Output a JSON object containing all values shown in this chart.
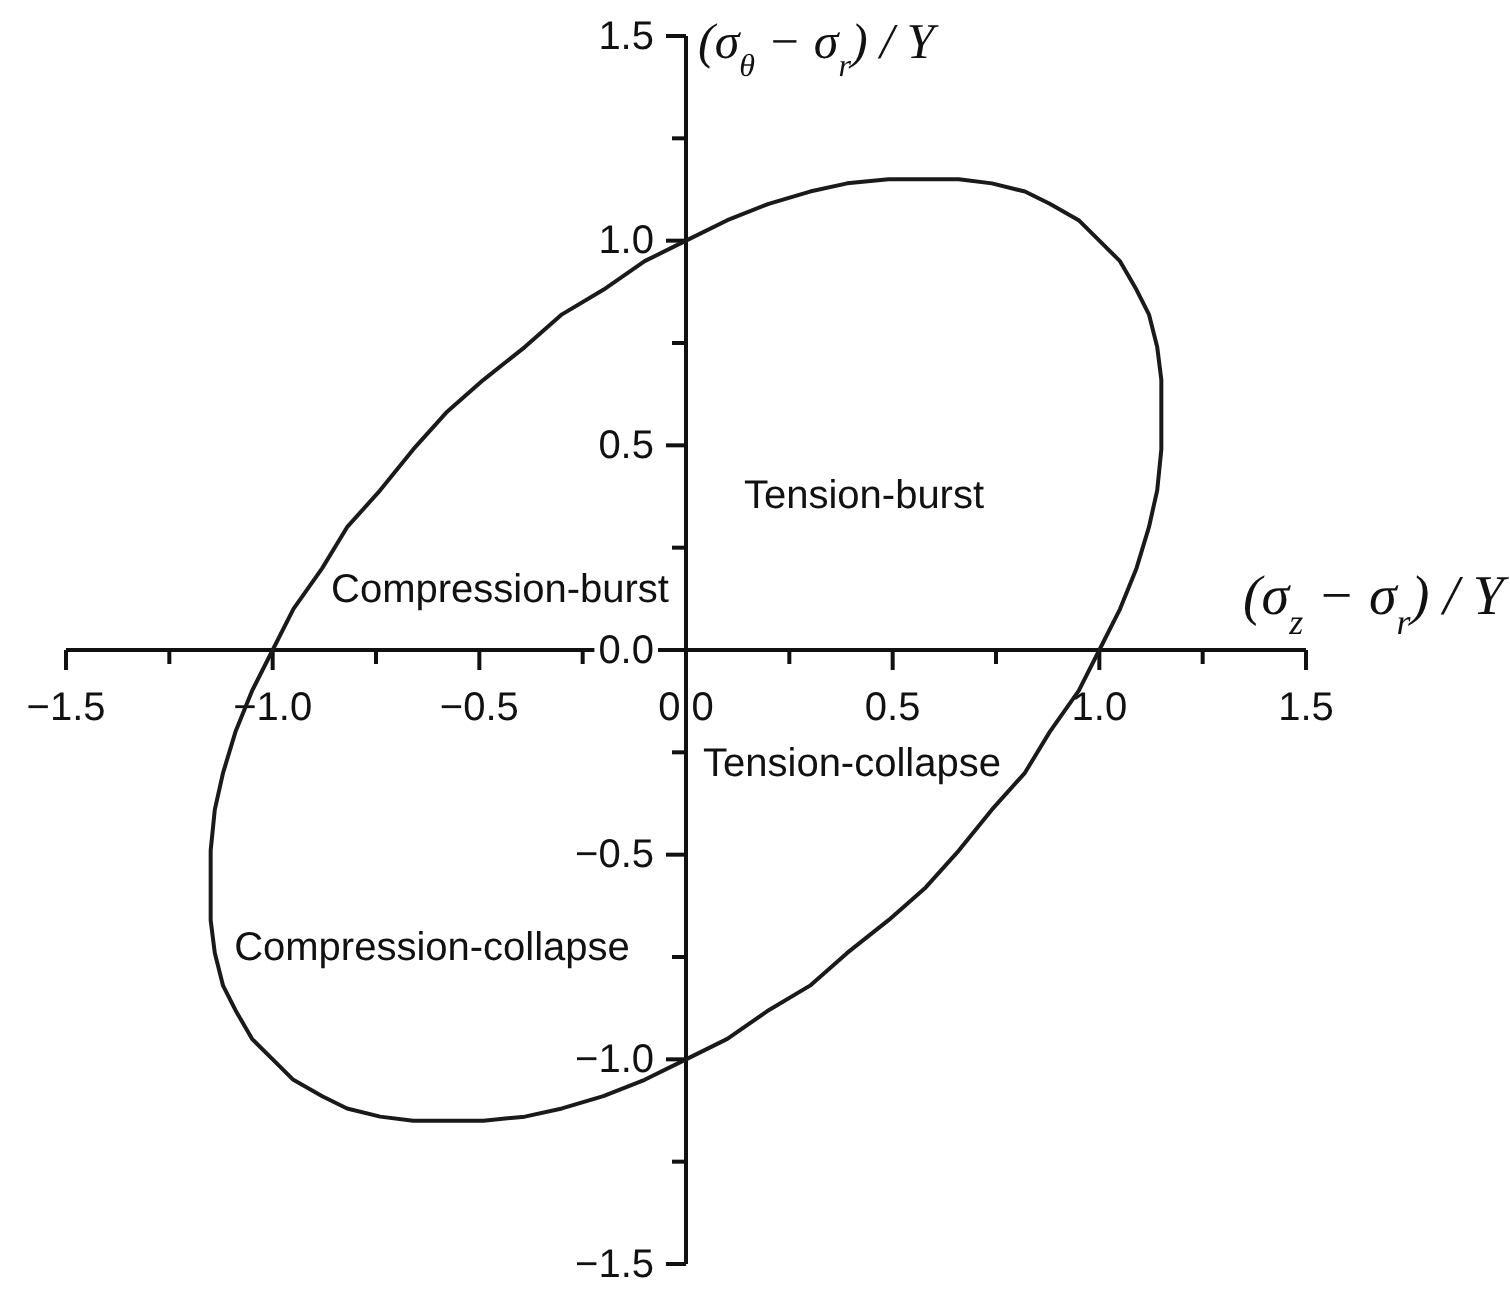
{
  "chart_data": {
    "type": "line",
    "xlabel": "(σ$_{z}$ − σ$_{r}$) / Y",
    "ylabel": "(σ$_{θ}$ − σ$_{r}$) / Y",
    "xlim": [
      -1.5,
      1.5
    ],
    "ylim": [
      -1.5,
      1.5
    ],
    "xticks": [
      {
        "value": -1.5,
        "label": "−1.5"
      },
      {
        "value": -1.25,
        "label": null
      },
      {
        "value": -1,
        "label": "−1.0"
      },
      {
        "value": -0.75,
        "label": null
      },
      {
        "value": -0.5,
        "label": "−0.5"
      },
      {
        "value": -0.25,
        "label": null
      },
      {
        "value": 0,
        "label": "0.0"
      },
      {
        "value": 0.25,
        "label": null
      },
      0.5,
      {
        "value": 0.75,
        "label": null
      },
      {
        "value": 1,
        "label": "1.0"
      },
      {
        "value": 1.25,
        "label": null
      },
      1.5
    ],
    "yticks": [
      {
        "value": -1.5,
        "label": "−1.5"
      },
      {
        "value": -1.25,
        "label": null
      },
      {
        "value": -1,
        "label": "−1.0"
      },
      {
        "value": -0.75,
        "label": null
      },
      {
        "value": -0.5,
        "label": "−0.5"
      },
      {
        "value": -0.25,
        "label": null
      },
      {
        "value": 0,
        "label": "0.0"
      },
      {
        "value": 0.25,
        "label": null
      },
      0.5,
      {
        "value": 0.75,
        "label": null
      },
      {
        "value": 1,
        "label": "1.0"
      },
      {
        "value": 1.25,
        "label": null
      },
      1.5
    ],
    "series": [
      {
        "color": "#1a1a1a",
        "x": [
          1,
          0.95,
          0.88,
          0.82,
          0.74,
          0.66,
          0.58,
          0.49,
          0.39,
          0.3,
          0.2,
          0.1,
          0,
          -0.1,
          -0.2,
          -0.3,
          -0.39,
          -0.49,
          -0.58,
          -0.66,
          -0.74,
          -0.82,
          -0.88,
          -0.95,
          -1,
          -1.05,
          -1.09,
          -1.12,
          -1.14,
          -1.15,
          -1.15,
          -1.15,
          -1.14,
          -1.12,
          -1.09,
          -1.05,
          -1,
          -0.95,
          -0.88,
          -0.82,
          -0.74,
          -0.66,
          -0.58,
          -0.49,
          -0.39,
          -0.3,
          -0.2,
          -0.1,
          0,
          0.1,
          0.2,
          0.3,
          0.39,
          0.49,
          0.58,
          0.66,
          0.74,
          0.82,
          0.88,
          0.95,
          1,
          1.05,
          1.09,
          1.12,
          1.14,
          1.15,
          1.15,
          1.15,
          1.14,
          1.12,
          1.09,
          1.05,
          1,
          0.95
        ],
        "values": [
          1,
          1.05,
          1.09,
          1.12,
          1.14,
          1.15,
          1.15,
          1.15,
          1.14,
          1.12,
          1.09,
          1.05,
          1,
          0.95,
          0.88,
          0.82,
          0.74,
          0.66,
          0.58,
          0.49,
          0.39,
          0.3,
          0.2,
          0.1,
          0,
          -0.1,
          -0.2,
          -0.3,
          -0.39,
          -0.49,
          -0.58,
          -0.66,
          -0.74,
          -0.82,
          -0.88,
          -0.95,
          -1,
          -1.05,
          -1.09,
          -1.12,
          -1.14,
          -1.15,
          -1.15,
          -1.15,
          -1.14,
          -1.12,
          -1.09,
          -1.05,
          -1,
          -0.95,
          -0.88,
          -0.82,
          -0.74,
          -0.66,
          -0.58,
          -0.49,
          -0.39,
          -0.3,
          -0.2,
          -0.1,
          0,
          0.1,
          0.2,
          0.3,
          0.39,
          0.49,
          0.58,
          0.66,
          0.74,
          0.82,
          0.88,
          0.95,
          1,
          1.05
        ]
      }
    ],
    "annotations": [
      "Tension-burst",
      "Compression-burst",
      "Tension-collapse",
      "Compression-collapse"
    ]
  }
}
